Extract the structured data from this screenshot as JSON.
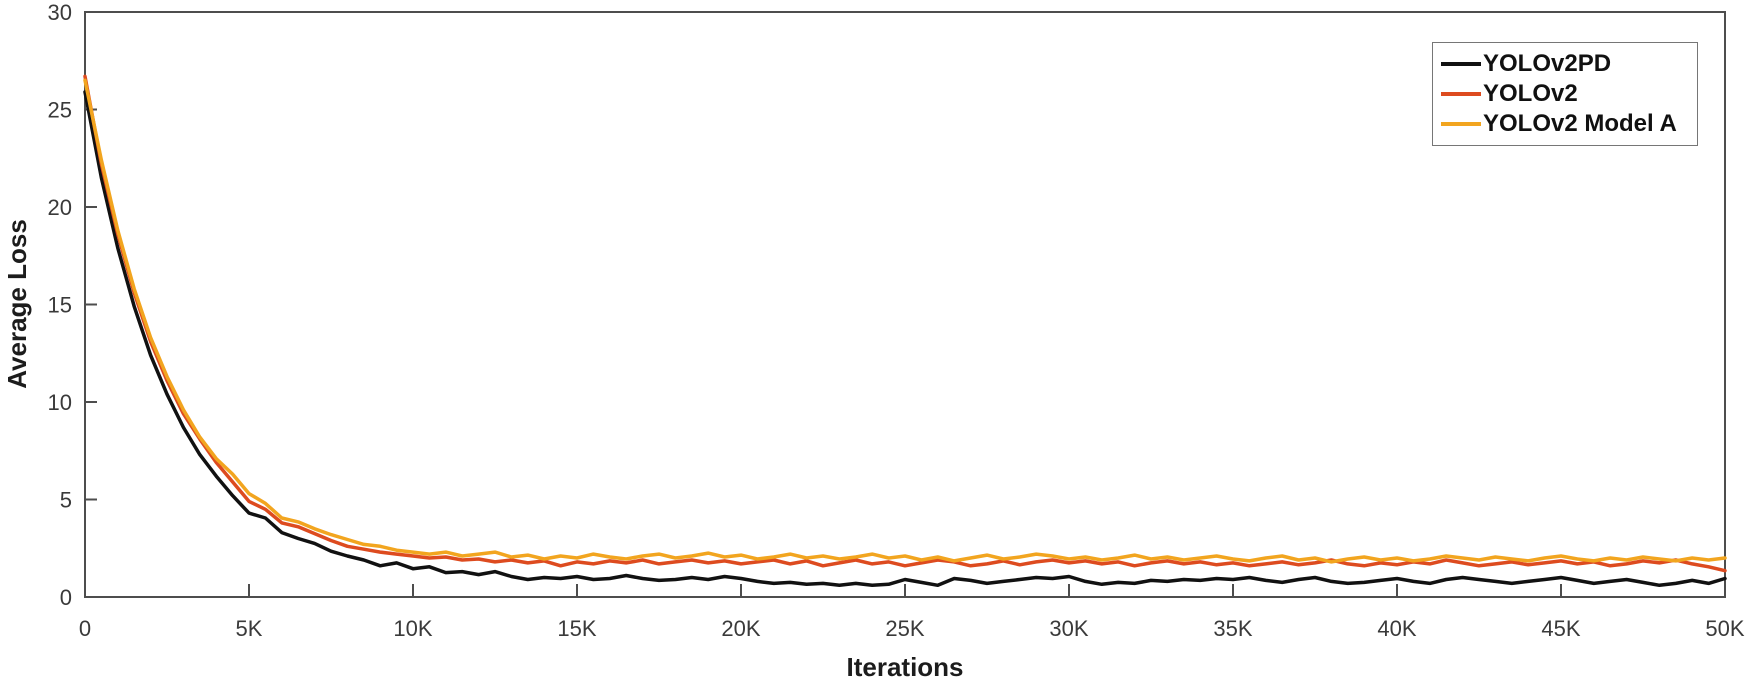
{
  "colors": {
    "axis_box": "#4d4d4d",
    "tick_text": "#3a3a3a",
    "axis_label_text": "#1c1c1c",
    "legend_border": "#767676",
    "background": "#ffffff",
    "series_black": "#111111",
    "series_red": "#dd4b1f",
    "series_yellow": "#f2a51f"
  },
  "chart_data": {
    "type": "line",
    "title": "",
    "xlabel": "Iterations",
    "ylabel": "Average Loss",
    "xlim": [
      0,
      50000
    ],
    "ylim": [
      0,
      30
    ],
    "grid": false,
    "legend_position": "top-right",
    "x_ticks": [
      0,
      5000,
      10000,
      15000,
      20000,
      25000,
      30000,
      35000,
      40000,
      45000,
      50000
    ],
    "x_tick_labels": [
      "0",
      "5K",
      "10K",
      "15K",
      "20K",
      "25K",
      "30K",
      "35K",
      "40K",
      "45K",
      "50K"
    ],
    "y_ticks": [
      0,
      5,
      10,
      15,
      20,
      25,
      30
    ],
    "y_tick_labels": [
      "0",
      "5",
      "10",
      "15",
      "20",
      "25",
      "30"
    ],
    "x": [
      0,
      500,
      1000,
      1500,
      2000,
      2500,
      3000,
      3500,
      4000,
      4500,
      5000,
      5500,
      6000,
      6500,
      7000,
      7500,
      8000,
      8500,
      9000,
      9500,
      10000,
      10500,
      11000,
      11500,
      12000,
      12500,
      13000,
      13500,
      14000,
      14500,
      15000,
      15500,
      16000,
      16500,
      17000,
      17500,
      18000,
      18500,
      19000,
      19500,
      20000,
      20500,
      21000,
      21500,
      22000,
      22500,
      23000,
      23500,
      24000,
      24500,
      25000,
      25500,
      26000,
      26500,
      27000,
      27500,
      28000,
      28500,
      29000,
      29500,
      30000,
      30500,
      31000,
      31500,
      32000,
      32500,
      33000,
      33500,
      34000,
      34500,
      35000,
      35500,
      36000,
      36500,
      37000,
      37500,
      38000,
      38500,
      39000,
      39500,
      40000,
      40500,
      41000,
      41500,
      42000,
      42500,
      43000,
      43500,
      44000,
      44500,
      45000,
      45500,
      46000,
      46500,
      47000,
      47500,
      48000,
      48500,
      49000,
      49500,
      50000
    ],
    "series": [
      {
        "name": "YOLOv2PD",
        "color": "#111111",
        "values": [
          25.9,
          21.5,
          17.9,
          14.9,
          12.4,
          10.4,
          8.7,
          7.3,
          6.2,
          5.2,
          4.3,
          4.05,
          3.3,
          3.0,
          2.75,
          2.35,
          2.1,
          1.9,
          1.6,
          1.75,
          1.45,
          1.55,
          1.25,
          1.3,
          1.15,
          1.3,
          1.05,
          0.9,
          1.0,
          0.95,
          1.05,
          0.9,
          0.95,
          1.1,
          0.95,
          0.85,
          0.9,
          1.0,
          0.9,
          1.05,
          0.95,
          0.8,
          0.7,
          0.75,
          0.65,
          0.7,
          0.6,
          0.7,
          0.6,
          0.65,
          0.9,
          0.75,
          0.6,
          0.95,
          0.85,
          0.7,
          0.8,
          0.9,
          1.0,
          0.95,
          1.05,
          0.8,
          0.65,
          0.75,
          0.7,
          0.85,
          0.8,
          0.9,
          0.85,
          0.95,
          0.9,
          1.0,
          0.85,
          0.75,
          0.9,
          1.0,
          0.8,
          0.7,
          0.75,
          0.85,
          0.95,
          0.8,
          0.7,
          0.9,
          1.0,
          0.9,
          0.8,
          0.7,
          0.8,
          0.9,
          1.0,
          0.85,
          0.7,
          0.8,
          0.9,
          0.75,
          0.6,
          0.7,
          0.85,
          0.7,
          0.95
        ]
      },
      {
        "name": "YOLOv2",
        "color": "#dd4b1f",
        "values": [
          26.7,
          22.2,
          18.6,
          15.6,
          13.1,
          11.1,
          9.4,
          8.1,
          6.9,
          5.9,
          4.9,
          4.5,
          3.8,
          3.6,
          3.25,
          2.9,
          2.6,
          2.45,
          2.3,
          2.2,
          2.1,
          2.0,
          2.05,
          1.9,
          1.95,
          1.8,
          1.9,
          1.75,
          1.85,
          1.6,
          1.8,
          1.7,
          1.85,
          1.75,
          1.9,
          1.7,
          1.8,
          1.9,
          1.75,
          1.85,
          1.7,
          1.8,
          1.9,
          1.7,
          1.85,
          1.6,
          1.75,
          1.9,
          1.7,
          1.8,
          1.6,
          1.75,
          1.9,
          1.8,
          1.6,
          1.7,
          1.85,
          1.65,
          1.8,
          1.9,
          1.75,
          1.85,
          1.7,
          1.8,
          1.6,
          1.75,
          1.85,
          1.7,
          1.8,
          1.65,
          1.75,
          1.6,
          1.7,
          1.8,
          1.65,
          1.75,
          1.9,
          1.7,
          1.6,
          1.75,
          1.65,
          1.8,
          1.7,
          1.9,
          1.75,
          1.6,
          1.7,
          1.8,
          1.65,
          1.75,
          1.85,
          1.7,
          1.8,
          1.6,
          1.7,
          1.85,
          1.75,
          1.9,
          1.7,
          1.55,
          1.35
        ]
      },
      {
        "name": "YOLOv2 Model A",
        "color": "#f2a51f",
        "values": [
          26.5,
          22.4,
          18.8,
          15.8,
          13.3,
          11.3,
          9.6,
          8.2,
          7.1,
          6.3,
          5.3,
          4.8,
          4.05,
          3.85,
          3.5,
          3.2,
          2.95,
          2.7,
          2.6,
          2.4,
          2.3,
          2.2,
          2.3,
          2.1,
          2.2,
          2.3,
          2.05,
          2.15,
          1.95,
          2.1,
          2.0,
          2.2,
          2.05,
          1.95,
          2.1,
          2.2,
          2.0,
          2.1,
          2.25,
          2.05,
          2.15,
          1.95,
          2.05,
          2.2,
          2.0,
          2.1,
          1.95,
          2.05,
          2.2,
          2.0,
          2.1,
          1.9,
          2.05,
          1.85,
          2.0,
          2.15,
          1.95,
          2.05,
          2.2,
          2.1,
          1.95,
          2.05,
          1.9,
          2.0,
          2.15,
          1.95,
          2.05,
          1.9,
          2.0,
          2.1,
          1.95,
          1.85,
          2.0,
          2.1,
          1.9,
          2.0,
          1.8,
          1.95,
          2.05,
          1.9,
          2.0,
          1.85,
          1.95,
          2.1,
          2.0,
          1.9,
          2.05,
          1.95,
          1.85,
          2.0,
          2.1,
          1.95,
          1.85,
          2.0,
          1.9,
          2.05,
          1.95,
          1.85,
          2.0,
          1.9,
          2.0
        ]
      }
    ]
  }
}
